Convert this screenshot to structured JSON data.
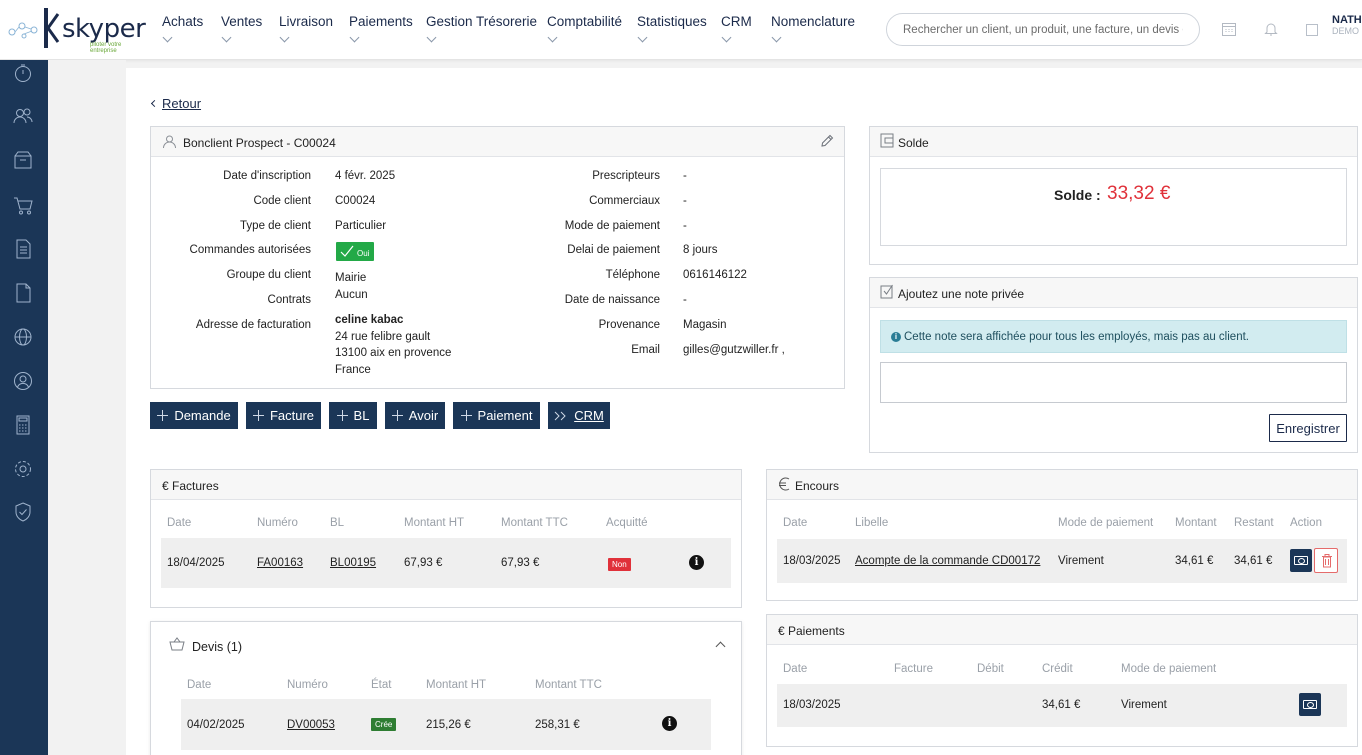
{
  "brand": {
    "name": "skyper",
    "tagline": "piloter votre entreprise"
  },
  "nav": [
    {
      "label": "Achats"
    },
    {
      "label": "Ventes"
    },
    {
      "label": "Livraison"
    },
    {
      "label": "Paiements"
    },
    {
      "label": "Gestion Trésorerie"
    },
    {
      "label": "Comptabilité"
    },
    {
      "label": "Statistiques"
    },
    {
      "label": "CRM"
    },
    {
      "label": "Nomenclature"
    }
  ],
  "search": {
    "placeholder": "Rechercher un client, un produit, une facture, un devis etc"
  },
  "user": {
    "name": "NATH",
    "company": "DEMO"
  },
  "back_label": "Retour",
  "client": {
    "title": "Bonclient Prospect - C00024",
    "left": [
      {
        "label": "Date d'inscription",
        "value": "4 févr. 2025"
      },
      {
        "label": "Code client",
        "value": "C00024"
      },
      {
        "label": "Type de client",
        "value": "Particulier"
      },
      {
        "label": "Commandes autorisées",
        "value": "Oui"
      },
      {
        "label": "Groupe du client",
        "value": "Mairie"
      },
      {
        "label": "Contrats",
        "value": "Aucun"
      },
      {
        "label": "Adresse de facturation",
        "value": "celine kabac"
      }
    ],
    "address_lines": [
      "24 rue felibre gault",
      "13100 aix en provence",
      "France"
    ],
    "right": [
      {
        "label": "Prescripteurs",
        "value": "-"
      },
      {
        "label": "Commerciaux",
        "value": "-"
      },
      {
        "label": "Mode de paiement",
        "value": "-"
      },
      {
        "label": "Delai de paiement",
        "value": "8 jours"
      },
      {
        "label": "Téléphone",
        "value": "0616146122"
      },
      {
        "label": "Date de naissance",
        "value": "-"
      },
      {
        "label": "Provenance",
        "value": "Magasin"
      },
      {
        "label": "Email",
        "value": "gilles@gutzwiller.fr ,"
      }
    ]
  },
  "actions": [
    "Demande",
    "Facture",
    "BL",
    "Avoir",
    "Paiement",
    "CRM"
  ],
  "solde": {
    "title": "Solde",
    "label": "Solde :",
    "value": "33,32 €"
  },
  "note": {
    "title": "Ajoutez une note privée",
    "info": "Cette note sera affichée pour tous les employés, mais pas au client.",
    "save_label": "Enregistrer"
  },
  "factures": {
    "title": "€ Factures",
    "headers": [
      "Date",
      "Numéro",
      "BL",
      "Montant HT",
      "Montant TTC",
      "Acquitté"
    ],
    "rows": [
      {
        "date": "18/04/2025",
        "numero": "FA00163",
        "bl": "BL00195",
        "ht": "67,93 €",
        "ttc": "67,93 €",
        "acquitte": "Non"
      }
    ]
  },
  "encours": {
    "title": "Encours",
    "headers": [
      "Date",
      "Libelle",
      "Mode de paiement",
      "Montant",
      "Restant",
      "Action"
    ],
    "rows": [
      {
        "date": "18/03/2025",
        "libelle": "Acompte de la commande CD00172",
        "mode": "Virement",
        "montant": "34,61 €",
        "restant": "34,61 €"
      }
    ]
  },
  "devis": {
    "title": "Devis (1)",
    "headers": [
      "Date",
      "Numéro",
      "État",
      "Montant HT",
      "Montant TTC"
    ],
    "rows": [
      {
        "date": "04/02/2025",
        "numero": "DV00053",
        "etat": "Crée",
        "ht": "215,26 €",
        "ttc": "258,31 €"
      }
    ]
  },
  "paiements": {
    "title": "€ Paiements",
    "headers": [
      "Date",
      "Facture",
      "Débit",
      "Crédit",
      "Mode de paiement"
    ],
    "rows": [
      {
        "date": "18/03/2025",
        "facture": "",
        "debit": "",
        "credit": "34,61 €",
        "mode": "Virement"
      }
    ]
  }
}
